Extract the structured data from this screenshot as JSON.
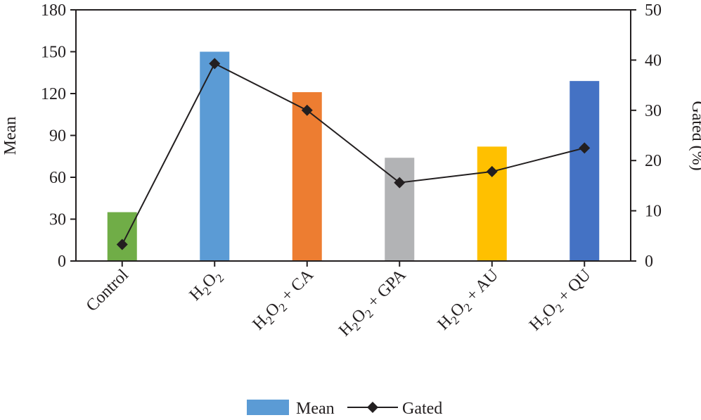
{
  "chart_data": {
    "type": "bar+line",
    "categories": [
      "Control",
      "H2O2",
      "H2O2 + CA",
      "H2O2 + GPA",
      "H2O2 + AU",
      "H2O2 + QU"
    ],
    "category_labels": [
      {
        "parts": [
          {
            "t": "Control",
            "sub": false
          }
        ]
      },
      {
        "parts": [
          {
            "t": "H",
            "sub": false
          },
          {
            "t": "2",
            "sub": true
          },
          {
            "t": "O",
            "sub": false
          },
          {
            "t": "2",
            "sub": true
          }
        ]
      },
      {
        "parts": [
          {
            "t": "H",
            "sub": false
          },
          {
            "t": "2",
            "sub": true
          },
          {
            "t": "O",
            "sub": false
          },
          {
            "t": "2",
            "sub": true
          },
          {
            "t": " + CA",
            "sub": false
          }
        ]
      },
      {
        "parts": [
          {
            "t": "H",
            "sub": false
          },
          {
            "t": "2",
            "sub": true
          },
          {
            "t": "O",
            "sub": false
          },
          {
            "t": "2",
            "sub": true
          },
          {
            "t": " + GPA",
            "sub": false
          }
        ]
      },
      {
        "parts": [
          {
            "t": "H",
            "sub": false
          },
          {
            "t": "2",
            "sub": true
          },
          {
            "t": "O",
            "sub": false
          },
          {
            "t": "2",
            "sub": true
          },
          {
            "t": " + AU",
            "sub": false
          }
        ]
      },
      {
        "parts": [
          {
            "t": "H",
            "sub": false
          },
          {
            "t": "2",
            "sub": true
          },
          {
            "t": "O",
            "sub": false
          },
          {
            "t": "2",
            "sub": true
          },
          {
            "t": " + QU",
            "sub": false
          }
        ]
      }
    ],
    "series": [
      {
        "name": "Mean",
        "kind": "bar",
        "axis": "left",
        "values": [
          35,
          150,
          121,
          74,
          82,
          129
        ],
        "colors": [
          "#70ad47",
          "#5b9bd5",
          "#ed7d31",
          "#b2b3b5",
          "#ffc000",
          "#4472c4"
        ],
        "legend_color": "#5b9bd5"
      },
      {
        "name": "Gated",
        "kind": "line",
        "axis": "right",
        "values": [
          3.3,
          39.3,
          30.0,
          15.6,
          17.8,
          22.5
        ],
        "color": "#231f20",
        "marker": "diamond"
      }
    ],
    "y_left": {
      "label": "Mean",
      "min": 0,
      "max": 180,
      "ticks": [
        0,
        30,
        60,
        90,
        120,
        150,
        180
      ]
    },
    "y_right": {
      "label": "Gated (%)",
      "min": 0,
      "max": 50,
      "ticks": [
        0,
        10,
        20,
        30,
        40,
        50
      ]
    },
    "legend": {
      "position": "bottom",
      "entries": [
        "Mean",
        "Gated"
      ]
    },
    "grid": false
  }
}
